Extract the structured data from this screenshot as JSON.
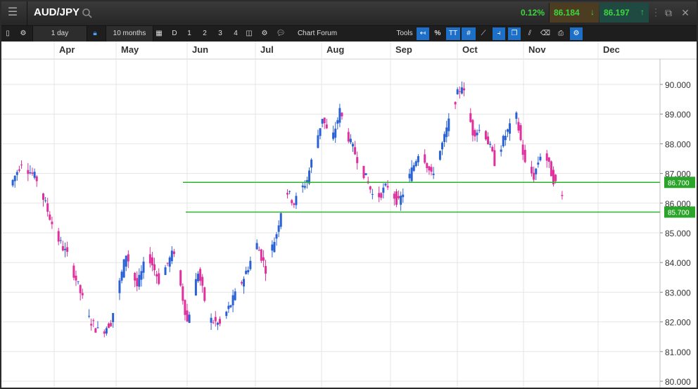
{
  "header": {
    "menu_icon": "hamburger-menu-icon",
    "symbol": "AUD/JPY",
    "search_icon": "search-icon",
    "change": "0.12%",
    "sell_price": "86.184",
    "buy_price": "86.197",
    "sell_arrow": "↓",
    "buy_arrow": "↑",
    "detach_icon": "window-detach-icon",
    "close_icon": "close-icon"
  },
  "toolbar": {
    "interval": "1 day",
    "range": "10 months",
    "d": "D",
    "n1": "1",
    "n2": "2",
    "n3": "3",
    "n4": "4",
    "chart_forum": "Chart Forum",
    "tools": "Tools",
    "percent": "%",
    "text_tool": "TT"
  },
  "colors": {
    "up": "#2a62d6",
    "down": "#e0309d",
    "support_line": "#2ab52a",
    "grid": "#e2e2e2"
  },
  "chart_data": {
    "type": "candlestick",
    "x_tick_labels": [
      "Apr",
      "May",
      "Jun",
      "Jul",
      "Aug",
      "Sep",
      "Oct",
      "Nov",
      "Dec"
    ],
    "y_tick_labels": [
      "90.000",
      "89.000",
      "88.000",
      "87.000",
      "86.000",
      "85.000",
      "84.000",
      "83.000",
      "82.000",
      "81.000",
      "80.000"
    ],
    "ylim": [
      79.97,
      91.0
    ],
    "horizontal_lines": [
      {
        "value": 86.7,
        "label": "86.700"
      },
      {
        "value": 85.7,
        "label": "85.700"
      }
    ],
    "grid": true,
    "checkpoints": [
      [
        "03-13",
        86.6
      ],
      [
        "03-18",
        87.4
      ],
      [
        "03-25",
        86.8
      ],
      [
        "04-03",
        84.9
      ],
      [
        "04-09",
        84.1
      ],
      [
        "04-18",
        82.1
      ],
      [
        "04-23",
        81.6
      ],
      [
        "04-28",
        82.0
      ],
      [
        "05-05",
        84.3
      ],
      [
        "05-10",
        83.2
      ],
      [
        "05-15",
        84.3
      ],
      [
        "05-20",
        83.4
      ],
      [
        "05-27",
        84.4
      ],
      [
        "06-02",
        82.0
      ],
      [
        "06-07",
        83.7
      ],
      [
        "06-12",
        82.1
      ],
      [
        "06-17",
        81.9
      ],
      [
        "06-22",
        82.6
      ],
      [
        "06-28",
        83.5
      ],
      [
        "07-04",
        84.6
      ],
      [
        "07-08",
        83.8
      ],
      [
        "07-13",
        85.0
      ],
      [
        "07-17",
        86.5
      ],
      [
        "07-21",
        86.0
      ],
      [
        "07-27",
        86.8
      ],
      [
        "08-03",
        88.9
      ],
      [
        "08-07",
        88.0
      ],
      [
        "08-11",
        89.1
      ],
      [
        "08-16",
        88.0
      ],
      [
        "08-21",
        87.2
      ],
      [
        "08-27",
        86.1
      ],
      [
        "09-02",
        86.6
      ],
      [
        "09-07",
        86.0
      ],
      [
        "09-12",
        86.9
      ],
      [
        "09-17",
        87.9
      ],
      [
        "09-22",
        86.9
      ],
      [
        "09-28",
        88.2
      ],
      [
        "10-03",
        89.5
      ],
      [
        "10-06",
        90.0
      ],
      [
        "10-11",
        88.4
      ],
      [
        "10-16",
        88.5
      ],
      [
        "10-21",
        87.4
      ],
      [
        "10-26",
        88.3
      ],
      [
        "10-31",
        88.9
      ],
      [
        "11-04",
        87.3
      ],
      [
        "11-08",
        86.9
      ],
      [
        "11-12",
        87.9
      ],
      [
        "11-17",
        86.8
      ],
      [
        "11-21",
        86.2
      ]
    ]
  }
}
